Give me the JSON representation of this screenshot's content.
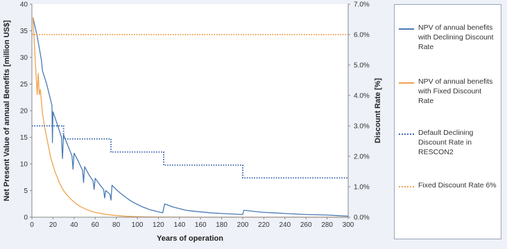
{
  "chart_data": {
    "type": "line",
    "xlabel": "Years of operation",
    "ylabel": "Net Present Value of annual Benefits [million US$]",
    "y2label": "Discount Rate [%]",
    "xlim": [
      0,
      300
    ],
    "ylim": [
      0,
      40
    ],
    "y2lim": [
      0,
      7.0
    ],
    "xticks": [
      "0",
      "20",
      "40",
      "60",
      "80",
      "100",
      "120",
      "140",
      "160",
      "180",
      "200",
      "220",
      "240",
      "260",
      "280",
      "300"
    ],
    "yticks": [
      "0",
      "5",
      "10",
      "15",
      "20",
      "25",
      "30",
      "35",
      "40"
    ],
    "y2ticks": [
      "0.0%",
      "1.0%",
      "2.0%",
      "3.0%",
      "4.0%",
      "5.0%",
      "6.0%",
      "7.0%"
    ],
    "grid": false,
    "legend_position": "right",
    "series": [
      {
        "name": "NPV of annual benefits with  Declining Discount Rate",
        "axis": "left",
        "style": "solid",
        "color": "#4a7ab5",
        "x": [
          1,
          5,
          9,
          10,
          14,
          19,
          19.5,
          20,
          24,
          28,
          29,
          30,
          34,
          38,
          39,
          40,
          44,
          48,
          49,
          50,
          54,
          58,
          59,
          60,
          64,
          68,
          69,
          70,
          74,
          75,
          76,
          80,
          84,
          88,
          92,
          96,
          100,
          104,
          108,
          112,
          116,
          120,
          124,
          126,
          130,
          134,
          138,
          142,
          146,
          150,
          160,
          170,
          180,
          190,
          200,
          201,
          210,
          220,
          230,
          240,
          250,
          260,
          270,
          280,
          290,
          300
        ],
        "y": [
          37.5,
          34,
          29.5,
          27.5,
          25,
          21,
          14,
          19.8,
          17.5,
          15,
          11,
          15.5,
          13.5,
          11.5,
          9,
          12,
          10.5,
          8.8,
          6.5,
          9.5,
          8,
          6.8,
          5.2,
          7.3,
          6.2,
          5.2,
          3.6,
          5,
          4.3,
          3.2,
          6,
          5.2,
          4.5,
          3.9,
          3.3,
          2.8,
          2.4,
          2.0,
          1.7,
          1.4,
          1.2,
          1.0,
          0.8,
          2.5,
          2.2,
          1.9,
          1.7,
          1.5,
          1.3,
          1.2,
          1.0,
          0.8,
          0.7,
          0.6,
          0.5,
          1.3,
          1.1,
          0.9,
          0.8,
          0.7,
          0.6,
          0.5,
          0.45,
          0.4,
          0.3,
          0.2
        ]
      },
      {
        "name": "NPV of annual benefits with Fixed Discount Rate",
        "axis": "left",
        "style": "solid",
        "color": "#f0a24e",
        "x": [
          1,
          3,
          5,
          6,
          7,
          8,
          10,
          12,
          14,
          16,
          18,
          20,
          22,
          24,
          26,
          28,
          30,
          34,
          38,
          42,
          46,
          50,
          55,
          60,
          70,
          80,
          90,
          100,
          110,
          120,
          140,
          160,
          200,
          250,
          300
        ],
        "y": [
          37.5,
          30,
          23,
          27,
          23,
          24,
          19.5,
          17,
          15,
          13,
          11,
          9.8,
          8.5,
          7.5,
          6.5,
          5.7,
          5.0,
          4.0,
          3.2,
          2.5,
          2.0,
          1.6,
          1.2,
          0.9,
          0.55,
          0.3,
          0.17,
          0.09,
          0.05,
          0.03,
          0.01,
          0,
          0,
          0,
          0
        ]
      },
      {
        "name": "Default Declining Discount Rate in RESCON2",
        "axis": "right",
        "style": "dotted",
        "color": "#3c67b0",
        "x": [
          0,
          30,
          30,
          75,
          75,
          125,
          125,
          200,
          200,
          300
        ],
        "y": [
          3.0,
          3.0,
          2.57,
          2.57,
          2.14,
          2.14,
          1.71,
          1.71,
          1.29,
          1.29
        ]
      },
      {
        "name": "Fixed Discount Rate 6%",
        "axis": "right",
        "style": "dotted",
        "color": "#f0a24e",
        "x": [
          0,
          300
        ],
        "y": [
          6.0,
          6.0
        ]
      }
    ]
  }
}
